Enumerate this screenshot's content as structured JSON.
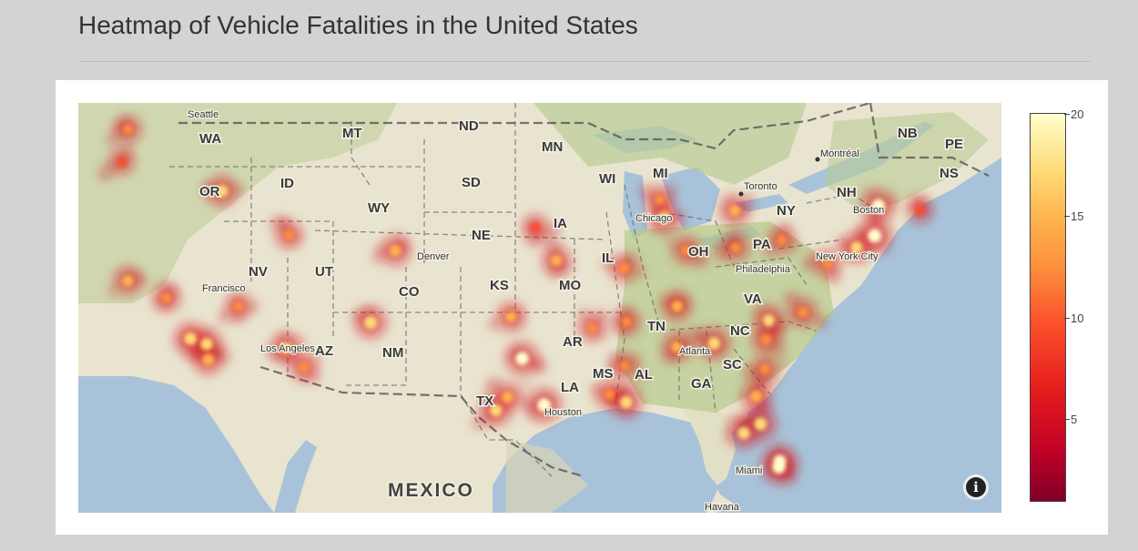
{
  "page": {
    "title": "Heatmap of Vehicle Fatalities in the United States"
  },
  "colors": {
    "page_background": "#d3d3d3",
    "panel_background": "#ffffff",
    "water": "#a8c3d9",
    "land": "#e9e4cf",
    "forest": "#b9cc95"
  },
  "map": {
    "state_labels": [
      "WA",
      "OR",
      "ID",
      "MT",
      "ND",
      "SD",
      "WY",
      "NV",
      "UT",
      "CO",
      "NE",
      "KS",
      "MO",
      "IA",
      "MN",
      "WI",
      "MI",
      "IL",
      "OH",
      "PA",
      "NY",
      "VA",
      "NC",
      "SC",
      "TN",
      "AR",
      "MS",
      "AL",
      "GA",
      "LA",
      "TX",
      "NM",
      "AZ",
      "NH"
    ],
    "province_labels": [
      "NB",
      "PE",
      "NS"
    ],
    "city_labels": [
      "Seattle",
      "Francisco",
      "Los Angeles",
      "Denver",
      "Chicago",
      "Toronto",
      "Montréal",
      "Boston",
      "New York City",
      "Philadelphia",
      "Atlanta",
      "Houston",
      "Miami",
      "Havana"
    ],
    "country_label": "MEXICO",
    "info_icon": "info-icon"
  },
  "chart_data": {
    "type": "heatmap",
    "title": "Heatmap of Vehicle Fatalities in the United States",
    "colorscale": [
      "#800026",
      "#bd0026",
      "#e31a1c",
      "#fc4e2a",
      "#fd8d3c",
      "#feb24c",
      "#fed976",
      "#ffffcc"
    ],
    "colorbar": {
      "min": 1,
      "max": 20,
      "tick_labels": [
        "20",
        "15",
        "10",
        "5"
      ],
      "tick_values": [
        20,
        15,
        10,
        5
      ]
    },
    "hotspots": [
      {
        "lat": 47.6,
        "lon": -122.3,
        "value": 12
      },
      {
        "lat": 45.5,
        "lon": -122.7,
        "value": 10
      },
      {
        "lat": 43.6,
        "lon": -116.2,
        "value": 16
      },
      {
        "lat": 37.8,
        "lon": -122.3,
        "value": 14
      },
      {
        "lat": 36.7,
        "lon": -119.8,
        "value": 13
      },
      {
        "lat": 34.05,
        "lon": -118.25,
        "value": 18
      },
      {
        "lat": 33.7,
        "lon": -117.2,
        "value": 17
      },
      {
        "lat": 32.7,
        "lon": -117.1,
        "value": 15
      },
      {
        "lat": 33.45,
        "lon": -112.07,
        "value": 16
      },
      {
        "lat": 32.2,
        "lon": -110.9,
        "value": 13
      },
      {
        "lat": 35.1,
        "lon": -106.6,
        "value": 18
      },
      {
        "lat": 39.74,
        "lon": -104.99,
        "value": 15
      },
      {
        "lat": 40.76,
        "lon": -111.89,
        "value": 12
      },
      {
        "lat": 36.17,
        "lon": -115.14,
        "value": 11
      },
      {
        "lat": 41.26,
        "lon": -95.94,
        "value": 10
      },
      {
        "lat": 39.1,
        "lon": -94.58,
        "value": 14
      },
      {
        "lat": 38.63,
        "lon": -90.2,
        "value": 13
      },
      {
        "lat": 41.88,
        "lon": -87.63,
        "value": 17
      },
      {
        "lat": 43.04,
        "lon": -87.91,
        "value": 12
      },
      {
        "lat": 42.33,
        "lon": -83.05,
        "value": 14
      },
      {
        "lat": 39.96,
        "lon": -82.99,
        "value": 12
      },
      {
        "lat": 39.77,
        "lon": -86.16,
        "value": 13
      },
      {
        "lat": 40.44,
        "lon": -79.99,
        "value": 11
      },
      {
        "lat": 39.95,
        "lon": -75.17,
        "value": 16
      },
      {
        "lat": 40.71,
        "lon": -74.0,
        "value": 20
      },
      {
        "lat": 42.65,
        "lon": -73.75,
        "value": 19
      },
      {
        "lat": 42.36,
        "lon": -71.06,
        "value": 10
      },
      {
        "lat": 38.9,
        "lon": -77.04,
        "value": 11
      },
      {
        "lat": 35.78,
        "lon": -78.64,
        "value": 13
      },
      {
        "lat": 35.23,
        "lon": -80.84,
        "value": 16
      },
      {
        "lat": 33.75,
        "lon": -84.39,
        "value": 18
      },
      {
        "lat": 36.16,
        "lon": -86.78,
        "value": 15
      },
      {
        "lat": 35.15,
        "lon": -90.05,
        "value": 12
      },
      {
        "lat": 34.74,
        "lon": -92.29,
        "value": 11
      },
      {
        "lat": 35.47,
        "lon": -97.52,
        "value": 14
      },
      {
        "lat": 32.78,
        "lon": -96.8,
        "value": 19
      },
      {
        "lat": 29.76,
        "lon": -95.37,
        "value": 20
      },
      {
        "lat": 29.42,
        "lon": -98.49,
        "value": 16
      },
      {
        "lat": 30.27,
        "lon": -97.74,
        "value": 14
      },
      {
        "lat": 29.95,
        "lon": -90.07,
        "value": 17
      },
      {
        "lat": 30.45,
        "lon": -91.15,
        "value": 13
      },
      {
        "lat": 32.3,
        "lon": -90.18,
        "value": 11
      },
      {
        "lat": 33.52,
        "lon": -86.8,
        "value": 14
      },
      {
        "lat": 30.33,
        "lon": -81.66,
        "value": 15
      },
      {
        "lat": 28.54,
        "lon": -81.38,
        "value": 18
      },
      {
        "lat": 27.95,
        "lon": -82.46,
        "value": 17
      },
      {
        "lat": 26.12,
        "lon": -80.14,
        "value": 19
      },
      {
        "lat": 25.76,
        "lon": -80.19,
        "value": 20
      },
      {
        "lat": 32.08,
        "lon": -81.09,
        "value": 12
      },
      {
        "lat": 34.0,
        "lon": -81.03,
        "value": 13
      }
    ]
  }
}
